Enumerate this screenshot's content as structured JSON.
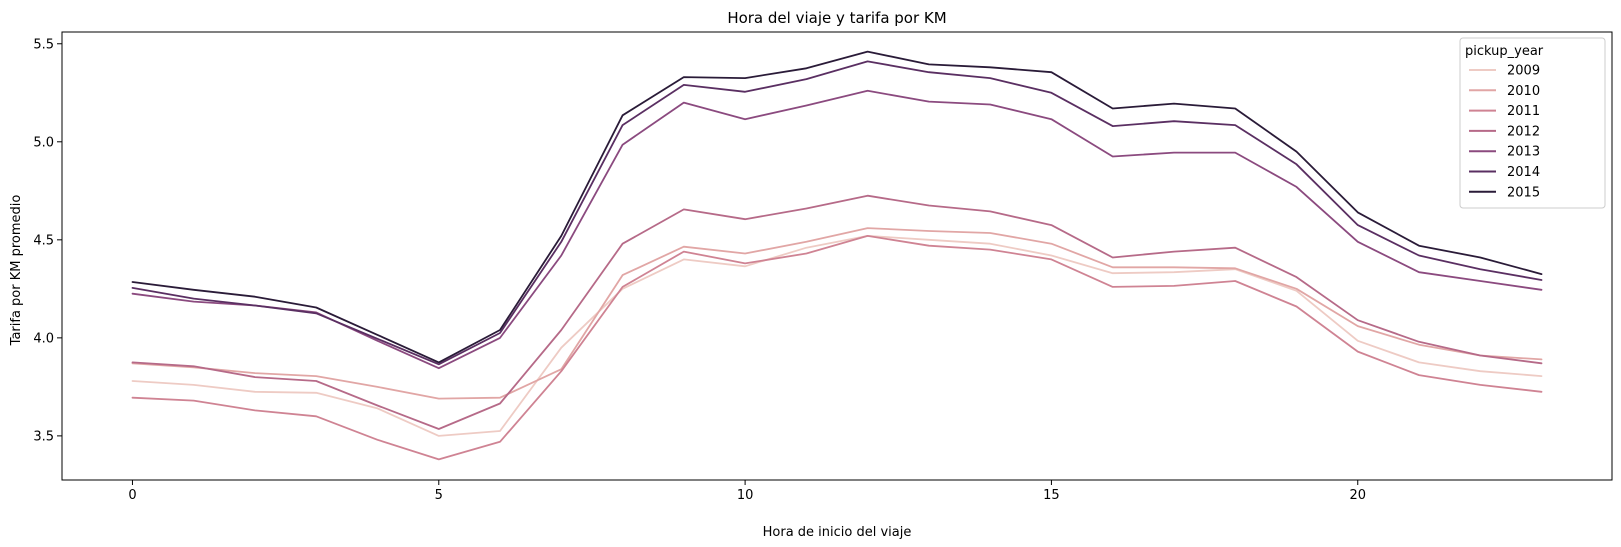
{
  "chart_data": {
    "type": "line",
    "title": "Hora del viaje y tarifa por KM",
    "xlabel": "Hora de inicio del viaje",
    "ylabel": "Tarifa por KM promedio",
    "xlim": [
      -1.15,
      24.15
    ],
    "ylim": [
      3.275,
      5.56
    ],
    "x_ticks": [
      0,
      5,
      10,
      15,
      20
    ],
    "y_ticks": [
      3.5,
      4.0,
      4.5,
      5.0,
      5.5
    ],
    "y_tick_labels": [
      "3.5",
      "4.0",
      "4.5",
      "5.0",
      "5.5"
    ],
    "grid": false,
    "legend": {
      "title": "pickup_year",
      "position": "top-right"
    },
    "x": [
      0,
      1,
      2,
      3,
      4,
      5,
      6,
      7,
      8,
      9,
      10,
      11,
      12,
      13,
      14,
      15,
      16,
      17,
      18,
      19,
      20,
      21,
      22,
      23
    ],
    "series": [
      {
        "name": "2009",
        "color": "#eecbc4",
        "values": [
          3.78,
          3.76,
          3.725,
          3.72,
          3.64,
          3.5,
          3.525,
          3.95,
          4.25,
          4.4,
          4.365,
          4.46,
          4.52,
          4.5,
          4.48,
          4.42,
          4.33,
          4.335,
          4.35,
          4.24,
          3.985,
          3.875,
          3.83,
          3.805
        ]
      },
      {
        "name": "2010",
        "color": "#e1a6a5",
        "values": [
          3.87,
          3.85,
          3.82,
          3.805,
          3.75,
          3.69,
          3.695,
          3.84,
          4.32,
          4.465,
          4.43,
          4.49,
          4.56,
          4.545,
          4.535,
          4.48,
          4.36,
          4.36,
          4.355,
          4.25,
          4.06,
          3.965,
          3.91,
          3.89
        ]
      },
      {
        "name": "2011",
        "color": "#cf8393",
        "values": [
          3.695,
          3.68,
          3.63,
          3.6,
          3.48,
          3.38,
          3.47,
          3.83,
          4.26,
          4.44,
          4.38,
          4.43,
          4.52,
          4.47,
          4.45,
          4.4,
          4.26,
          4.265,
          4.29,
          4.16,
          3.93,
          3.81,
          3.76,
          3.725
        ]
      },
      {
        "name": "2012",
        "color": "#b66a88",
        "values": [
          3.875,
          3.855,
          3.8,
          3.78,
          3.655,
          3.535,
          3.665,
          4.04,
          4.48,
          4.655,
          4.605,
          4.66,
          4.725,
          4.675,
          4.645,
          4.575,
          4.41,
          4.44,
          4.46,
          4.31,
          4.09,
          3.98,
          3.91,
          3.87
        ]
      },
      {
        "name": "2013",
        "color": "#8b4a7f",
        "values": [
          4.225,
          4.185,
          4.165,
          4.13,
          3.985,
          3.845,
          4.0,
          4.42,
          4.985,
          5.2,
          5.115,
          5.185,
          5.26,
          5.205,
          5.19,
          5.115,
          4.925,
          4.945,
          4.945,
          4.77,
          4.49,
          4.335,
          4.29,
          4.245
        ]
      },
      {
        "name": "2014",
        "color": "#5a2f62",
        "values": [
          4.255,
          4.2,
          4.165,
          4.125,
          3.995,
          3.865,
          4.025,
          4.49,
          5.085,
          5.29,
          5.255,
          5.32,
          5.41,
          5.355,
          5.325,
          5.25,
          5.08,
          5.105,
          5.085,
          4.885,
          4.575,
          4.42,
          4.35,
          4.295
        ]
      },
      {
        "name": "2015",
        "color": "#2a1b38",
        "values": [
          4.285,
          4.245,
          4.21,
          4.155,
          4.015,
          3.875,
          4.04,
          4.52,
          5.135,
          5.33,
          5.325,
          5.375,
          5.46,
          5.395,
          5.38,
          5.355,
          5.17,
          5.195,
          5.17,
          4.95,
          4.64,
          4.47,
          4.41,
          4.325
        ]
      }
    ]
  }
}
